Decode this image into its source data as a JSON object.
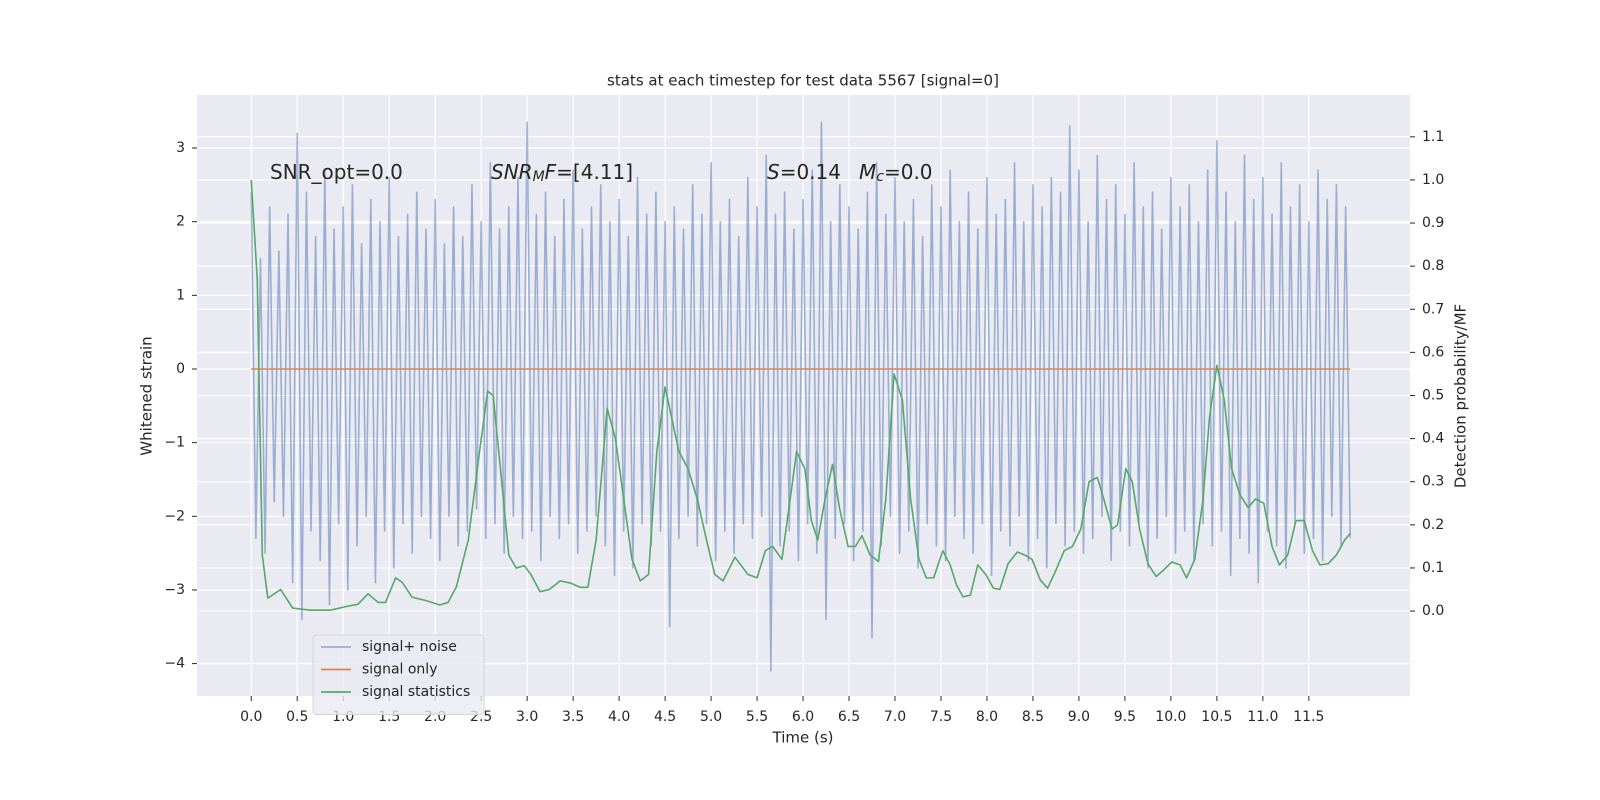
{
  "chart_data": {
    "type": "line",
    "title": "stats at each timestep for test data 5567 [signal=0]",
    "xlabel": "Time (s)",
    "ylabel": "Whitened strain",
    "y2label": "Detection probability/MF",
    "xlim": [
      -0.59,
      12.6
    ],
    "ylim": [
      -4.44,
      3.72
    ],
    "y2lim": [
      -0.197,
      1.197
    ],
    "xticks": [
      {
        "value": 0,
        "label": "0.0"
      },
      0.5,
      {
        "value": 1,
        "label": "1.0"
      },
      1.5,
      {
        "value": 2,
        "label": "2.0"
      },
      2.5,
      {
        "value": 3,
        "label": "3.0"
      },
      3.5,
      {
        "value": 4,
        "label": "4.0"
      },
      4.5,
      {
        "value": 5,
        "label": "5.0"
      },
      5.5,
      {
        "value": 6,
        "label": "6.0"
      },
      6.5,
      {
        "value": 7,
        "label": "7.0"
      },
      7.5,
      {
        "value": 8,
        "label": "8.0"
      },
      8.5,
      {
        "value": 9,
        "label": "9.0"
      },
      9.5,
      {
        "value": 10,
        "label": "10.0"
      },
      10.5,
      {
        "value": 11,
        "label": "11.0"
      },
      11.5
    ],
    "yticks": [
      {
        "value": -4,
        "label": "−4"
      },
      {
        "value": -3,
        "label": "−3"
      },
      {
        "value": -2,
        "label": "−2"
      },
      {
        "value": -1,
        "label": "−1"
      },
      0,
      1,
      2,
      3
    ],
    "y2ticks": [
      {
        "value": 0,
        "label": "0.0"
      },
      0.1,
      0.2,
      0.3,
      0.4,
      0.5,
      0.6,
      0.7,
      0.8,
      0.9,
      {
        "value": 1,
        "label": "1.0"
      },
      1.1
    ],
    "grid": true,
    "legend": "lower left",
    "annotations": [
      [
        {
          "text": "SNR_opt=0.0",
          "style": "normal"
        }
      ],
      [
        {
          "text": "SNR",
          "style": "italic"
        },
        {
          "text": "M",
          "style": "italic-sub"
        },
        {
          "text": "F",
          "style": "italic"
        },
        {
          "text": "=[4.11]",
          "style": "normal"
        }
      ],
      [
        {
          "text": "S",
          "style": "italic"
        },
        {
          "text": "=0.14",
          "style": "normal"
        }
      ],
      [
        {
          "text": "M",
          "style": "italic"
        },
        {
          "text": "c",
          "style": "italic-sub"
        },
        {
          "text": "=0.0",
          "style": "normal"
        }
      ]
    ],
    "series": [
      {
        "name": "signal+ noise",
        "color": "#4c72b0",
        "opacity": 0.5,
        "axis": "y",
        "x": [
          0,
          0.05,
          0.1,
          0.15,
          0.2,
          0.25,
          0.3,
          0.35,
          0.4,
          0.45,
          0.5,
          0.55,
          0.6,
          0.65,
          0.7,
          0.75,
          0.8,
          0.85,
          0.9,
          0.95,
          1,
          1.05,
          1.1,
          1.15,
          1.2,
          1.25,
          1.3,
          1.35,
          1.4,
          1.45,
          1.5,
          1.55,
          1.6,
          1.65,
          1.7,
          1.75,
          1.8,
          1.85,
          1.9,
          1.95,
          2,
          2.05,
          2.1,
          2.15,
          2.2,
          2.25,
          2.3,
          2.35,
          2.4,
          2.45,
          2.5,
          2.55,
          2.6,
          2.65,
          2.7,
          2.75,
          2.8,
          2.85,
          2.9,
          2.95,
          3,
          3.05,
          3.1,
          3.15,
          3.2,
          3.25,
          3.3,
          3.35,
          3.4,
          3.45,
          3.5,
          3.55,
          3.6,
          3.65,
          3.7,
          3.75,
          3.8,
          3.85,
          3.9,
          3.95,
          4,
          4.05,
          4.1,
          4.15,
          4.2,
          4.25,
          4.3,
          4.35,
          4.4,
          4.45,
          4.5,
          4.55,
          4.6,
          4.65,
          4.7,
          4.75,
          4.8,
          4.85,
          4.9,
          4.95,
          5,
          5.05,
          5.1,
          5.15,
          5.2,
          5.25,
          5.3,
          5.35,
          5.4,
          5.45,
          5.5,
          5.55,
          5.6,
          5.65,
          5.7,
          5.75,
          5.8,
          5.85,
          5.9,
          5.95,
          6,
          6.05,
          6.1,
          6.15,
          6.2,
          6.25,
          6.3,
          6.35,
          6.4,
          6.45,
          6.5,
          6.55,
          6.6,
          6.65,
          6.7,
          6.75,
          6.8,
          6.85,
          6.9,
          6.95,
          7,
          7.05,
          7.1,
          7.15,
          7.2,
          7.25,
          7.3,
          7.35,
          7.4,
          7.45,
          7.5,
          7.55,
          7.6,
          7.65,
          7.7,
          7.75,
          7.8,
          7.85,
          7.9,
          7.95,
          8,
          8.05,
          8.1,
          8.15,
          8.2,
          8.25,
          8.3,
          8.35,
          8.4,
          8.45,
          8.5,
          8.55,
          8.6,
          8.65,
          8.7,
          8.75,
          8.8,
          8.85,
          8.9,
          8.95,
          9,
          9.05,
          9.1,
          9.15,
          9.2,
          9.25,
          9.3,
          9.35,
          9.4,
          9.45,
          9.5,
          9.55,
          9.6,
          9.65,
          9.7,
          9.75,
          9.8,
          9.85,
          9.9,
          9.95,
          10,
          10.05,
          10.1,
          10.15,
          10.2,
          10.25,
          10.3,
          10.35,
          10.4,
          10.45,
          10.5,
          10.55,
          10.6,
          10.65,
          10.7,
          10.75,
          10.8,
          10.85,
          10.9,
          10.95,
          11,
          11.05,
          11.1,
          11.15,
          11.2,
          11.25,
          11.3,
          11.35,
          11.4,
          11.45,
          11.5,
          11.55,
          11.6,
          11.65,
          11.7,
          11.75,
          11.8,
          11.85,
          11.9,
          11.95
        ],
        "values": [
          2.4,
          -2.3,
          1.5,
          -2.5,
          2.2,
          -1.8,
          1.6,
          -2.0,
          2.1,
          -2.9,
          3.2,
          -3.4,
          2.4,
          -2.2,
          1.8,
          -2.6,
          2.7,
          -3.2,
          1.9,
          -2.1,
          2.2,
          -3.0,
          2.5,
          -2.4,
          1.7,
          -2.0,
          2.3,
          -2.9,
          2.0,
          -2.2,
          2.6,
          -2.7,
          1.8,
          -2.1,
          2.1,
          -2.5,
          2.4,
          -2.0,
          1.9,
          -2.3,
          2.3,
          -2.6,
          1.7,
          -2.0,
          2.2,
          -2.4,
          1.8,
          -2.2,
          2.5,
          -1.9,
          2.0,
          -2.3,
          2.8,
          -2.1,
          1.9,
          -2.5,
          2.2,
          -2.0,
          2.6,
          -2.3,
          3.35,
          -2.2,
          2.1,
          -2.6,
          2.4,
          -2.0,
          1.8,
          -2.3,
          2.3,
          -2.1,
          2.7,
          -2.5,
          1.9,
          -2.2,
          2.2,
          -2.0,
          2.5,
          -2.4,
          2.0,
          -2.8,
          2.3,
          -2.2,
          1.8,
          -2.7,
          2.6,
          -2.1,
          2.1,
          -2.4,
          2.4,
          -2.2,
          2.0,
          -3.5,
          2.2,
          -2.3,
          1.9,
          -2.0,
          2.5,
          -2.4,
          2.1,
          -2.1,
          2.8,
          -2.6,
          2.0,
          -2.2,
          2.3,
          -2.5,
          1.8,
          -2.1,
          2.6,
          -2.3,
          2.2,
          -2.0,
          2.9,
          -4.1,
          2.1,
          -2.4,
          2.4,
          -2.2,
          1.9,
          -2.6,
          2.3,
          -2.1,
          2.7,
          -2.5,
          3.35,
          -3.4,
          2.0,
          -2.3,
          2.5,
          -2.1,
          2.2,
          -2.6,
          1.9,
          -2.2,
          2.4,
          -3.65,
          2.8,
          -2.4,
          2.1,
          -2.0,
          2.6,
          -2.5,
          2.0,
          -2.2,
          2.3,
          -2.7,
          1.8,
          -2.1,
          2.5,
          -2.4,
          2.2,
          -2.6,
          2.7,
          -2.0,
          2.0,
          -2.3,
          2.4,
          -2.5,
          1.9,
          -2.1,
          2.6,
          -2.8,
          2.1,
          -2.2,
          2.3,
          -2.4,
          2.8,
          -2.0,
          2.0,
          -2.6,
          2.5,
          -2.3,
          2.2,
          -2.7,
          2.6,
          -2.1,
          2.4,
          -2.4,
          3.3,
          -2.2,
          2.7,
          -2.5,
          2.0,
          -2.3,
          2.9,
          -2.0,
          2.3,
          -2.6,
          2.5,
          -2.2,
          2.1,
          -2.4,
          2.8,
          -2.1,
          2.2,
          -2.7,
          2.4,
          -2.3,
          1.9,
          -2.0,
          2.6,
          -2.5,
          2.2,
          -2.2,
          2.5,
          -2.6,
          2.0,
          -2.1,
          2.7,
          -2.4,
          3.1,
          -2.2,
          2.4,
          -2.8,
          2.0,
          -2.3,
          2.9,
          -2.5,
          2.3,
          -2.9,
          2.6,
          -2.2,
          2.1,
          -2.4,
          2.8,
          -2.7,
          2.2,
          -2.1,
          2.5,
          -2.5,
          2.0,
          -2.3,
          2.7,
          -2.6,
          2.3,
          -2.0,
          2.5,
          -2.4,
          2.2,
          -2.3
        ]
      },
      {
        "name": "signal only",
        "color": "#dd8452",
        "opacity": 1,
        "axis": "y",
        "x": [
          0,
          11.95
        ],
        "values": [
          0,
          0
        ]
      },
      {
        "name": "signal statistics",
        "color": "#55a868",
        "opacity": 1,
        "axis": "y2",
        "x": [
          0,
          0.065,
          0.12,
          0.18,
          0.25,
          0.32,
          0.45,
          0.64,
          0.86,
          1.02,
          1.16,
          1.27,
          1.38,
          1.46,
          1.57,
          1.64,
          1.75,
          1.89,
          2.05,
          2.14,
          2.23,
          2.36,
          2.47,
          2.57,
          2.63,
          2.71,
          2.8,
          2.88,
          2.97,
          3.04,
          3.14,
          3.24,
          3.36,
          3.47,
          3.58,
          3.66,
          3.75,
          3.87,
          3.96,
          4.05,
          4.14,
          4.23,
          4.32,
          4.41,
          4.5,
          4.58,
          4.65,
          4.75,
          4.85,
          4.95,
          5.04,
          5.13,
          5.26,
          5.4,
          5.5,
          5.59,
          5.67,
          5.77,
          5.86,
          5.93,
          6.02,
          6.09,
          6.16,
          6.24,
          6.32,
          6.4,
          6.49,
          6.57,
          6.64,
          6.73,
          6.82,
          6.9,
          6.99,
          7.08,
          7.17,
          7.26,
          7.34,
          7.42,
          7.52,
          7.6,
          7.67,
          7.74,
          7.82,
          7.9,
          7.99,
          8.07,
          8.14,
          8.23,
          8.33,
          8.41,
          8.49,
          8.58,
          8.66,
          8.75,
          8.84,
          8.93,
          9.02,
          9.11,
          9.2,
          9.27,
          9.36,
          9.42,
          9.51,
          9.58,
          9.66,
          9.75,
          9.84,
          9.92,
          10.01,
          10.1,
          10.17,
          10.26,
          10.35,
          10.42,
          10.5,
          10.58,
          10.66,
          10.75,
          10.84,
          10.92,
          11.01,
          11.1,
          11.18,
          11.27,
          11.36,
          11.45,
          11.54,
          11.62,
          11.71,
          11.8,
          11.89,
          11.95
        ],
        "values": [
          1.0,
          0.77,
          0.13,
          0.03,
          0.04,
          0.05,
          0.007,
          0.002,
          0.002,
          0.01,
          0.016,
          0.04,
          0.02,
          0.02,
          0.077,
          0.067,
          0.032,
          0.025,
          0.014,
          0.02,
          0.056,
          0.165,
          0.35,
          0.51,
          0.5,
          0.33,
          0.13,
          0.1,
          0.105,
          0.085,
          0.045,
          0.05,
          0.07,
          0.065,
          0.055,
          0.055,
          0.165,
          0.47,
          0.4,
          0.26,
          0.12,
          0.07,
          0.085,
          0.37,
          0.52,
          0.44,
          0.37,
          0.33,
          0.26,
          0.165,
          0.085,
          0.07,
          0.125,
          0.085,
          0.077,
          0.14,
          0.15,
          0.12,
          0.26,
          0.37,
          0.33,
          0.21,
          0.165,
          0.26,
          0.34,
          0.235,
          0.15,
          0.15,
          0.175,
          0.13,
          0.115,
          0.26,
          0.55,
          0.49,
          0.26,
          0.12,
          0.077,
          0.077,
          0.14,
          0.107,
          0.06,
          0.033,
          0.037,
          0.107,
          0.084,
          0.053,
          0.05,
          0.11,
          0.137,
          0.13,
          0.12,
          0.072,
          0.053,
          0.095,
          0.14,
          0.15,
          0.19,
          0.3,
          0.31,
          0.26,
          0.19,
          0.2,
          0.33,
          0.3,
          0.19,
          0.11,
          0.08,
          0.095,
          0.114,
          0.107,
          0.077,
          0.12,
          0.26,
          0.45,
          0.57,
          0.49,
          0.33,
          0.27,
          0.24,
          0.26,
          0.25,
          0.15,
          0.107,
          0.13,
          0.21,
          0.21,
          0.14,
          0.107,
          0.11,
          0.13,
          0.165,
          0.18
        ]
      }
    ]
  }
}
